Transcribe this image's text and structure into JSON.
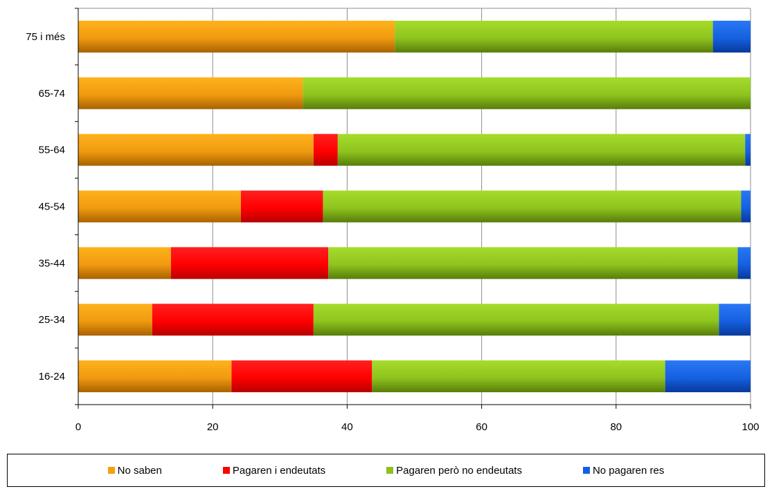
{
  "chart_data": {
    "type": "bar",
    "orientation": "horizontal",
    "stacked": true,
    "categories": [
      "75 i més",
      "65-74",
      "55-64",
      "45-54",
      "35-44",
      "25-34",
      "16-24"
    ],
    "series": [
      {
        "name": "No saben",
        "color": "#f5a00f",
        "values": [
          47.1,
          33.4,
          35.0,
          24.2,
          13.8,
          11.0,
          22.8
        ]
      },
      {
        "name": "Pagaren i endeutats",
        "color": "#ff0000",
        "values": [
          0,
          0,
          3.6,
          12.2,
          23.4,
          24.0,
          20.9
        ]
      },
      {
        "name": "Pagaren però no endeutats",
        "color": "#8dc21f",
        "values": [
          47.3,
          66.6,
          60.6,
          62.2,
          60.9,
          60.3,
          43.6
        ]
      },
      {
        "name": "No pagaren res",
        "color": "#1560e0",
        "values": [
          5.6,
          0,
          0.8,
          1.4,
          1.9,
          4.7,
          12.7
        ]
      }
    ],
    "xlim": [
      0,
      100
    ],
    "xticks": [
      "0",
      "20",
      "40",
      "60",
      "80",
      "100"
    ],
    "grid": true,
    "legend": "bottom",
    "title": "",
    "xlabel": "",
    "ylabel": ""
  }
}
